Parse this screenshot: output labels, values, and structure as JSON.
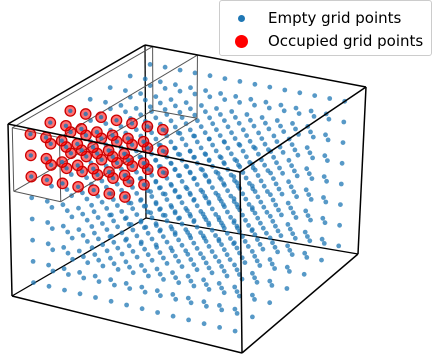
{
  "chart_data": {
    "type": "scatter",
    "subtype": "3d-grid",
    "grid": {
      "nx": 7,
      "ny": 14,
      "nz": 8
    },
    "occupied_region": {
      "x": [
        0,
        6
      ],
      "y": [
        0,
        2
      ],
      "z": [
        5,
        7
      ]
    },
    "series": [
      {
        "name": "Empty grid points",
        "color": "#1f77b4",
        "marker": "dot"
      },
      {
        "name": "Occupied grid points",
        "color": "#ff0000",
        "marker": "circle"
      }
    ],
    "legend_position": "top-right",
    "box_color": "#000000",
    "occupied_box_color": "#555555"
  }
}
